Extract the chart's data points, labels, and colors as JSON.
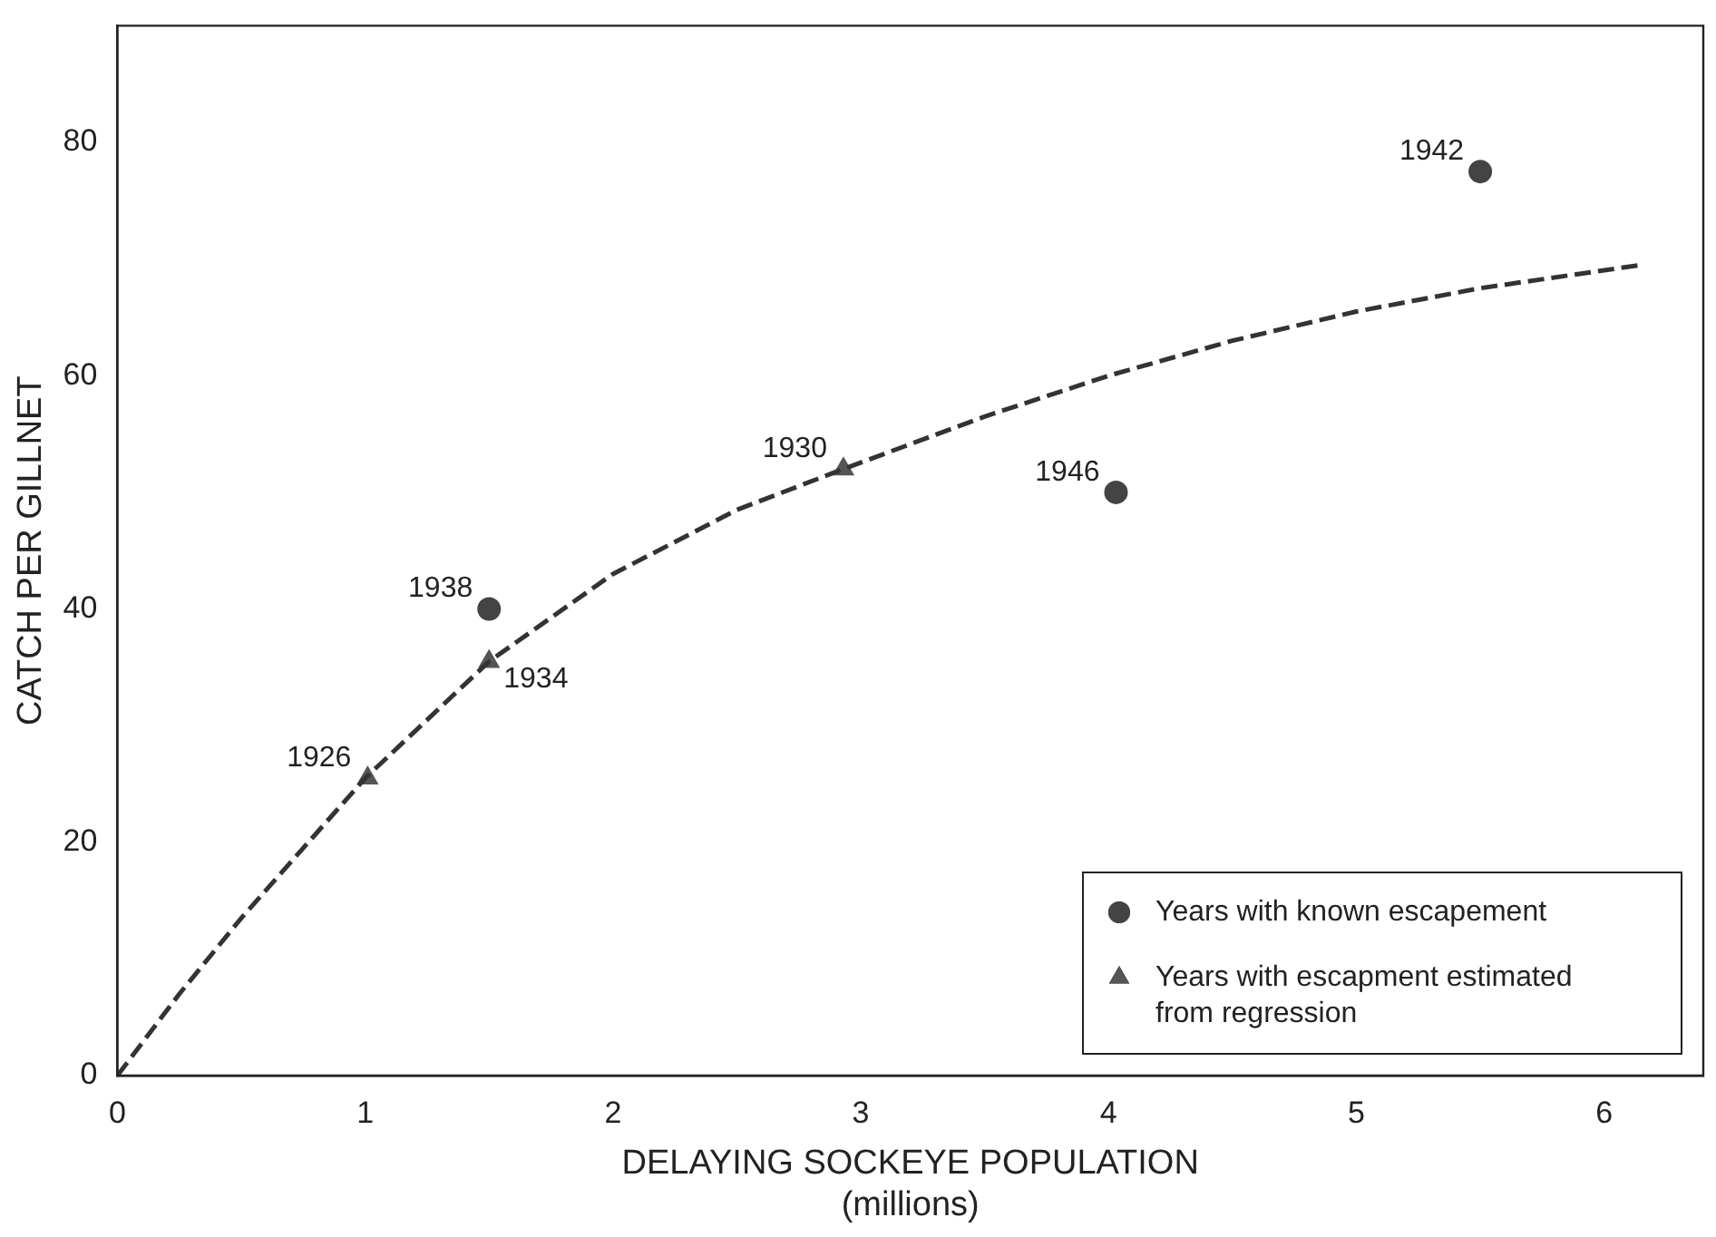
{
  "chart_data": {
    "type": "scatter",
    "xlabel": "DELAYING SOCKEYE POPULATION\n(millions)",
    "ylabel": "CATCH PER GILLNET",
    "xlim": [
      0,
      6.4
    ],
    "xticks": [
      0,
      1,
      2,
      3,
      4,
      5,
      6
    ],
    "ylim": [
      0,
      90
    ],
    "yticks": [
      0,
      20,
      40,
      60,
      80
    ],
    "grid": false,
    "legend": "bottom right",
    "series": [
      {
        "type": "line",
        "color": "#333333",
        "line_style": "dashed",
        "marker": "none",
        "x": [
          0,
          0.25,
          0.5,
          0.75,
          1,
          1.5,
          2,
          2.5,
          2.93,
          3.5,
          4,
          4.5,
          5,
          5.5,
          6.15
        ],
        "values": [
          0,
          7,
          13.5,
          19.5,
          25.5,
          35.5,
          43,
          48.5,
          52,
          56.5,
          60,
          63,
          65.5,
          67.5,
          69.5
        ]
      },
      {
        "name": "Years with known escapement",
        "color": "#444444",
        "marker": "circle",
        "x": [
          1.5,
          4.03,
          5.5
        ],
        "values": [
          40,
          50,
          77.5
        ]
      },
      {
        "name": "Years with escapment estimated from regression",
        "color": "#555555",
        "marker": "triangle",
        "x": [
          1.01,
          1.5,
          2.93
        ],
        "values": [
          25.5,
          35.5,
          52
        ]
      }
    ],
    "annotations": [
      {
        "text": "1938",
        "x": 1.5,
        "y": 40
      },
      {
        "text": "1946",
        "x": 4.03,
        "y": 50
      },
      {
        "text": "1942",
        "x": 5.5,
        "y": 77.5
      },
      {
        "text": "1926",
        "x": 1.01,
        "y": 25.5
      },
      {
        "text": "1934",
        "x": 1.5,
        "y": 35.5
      },
      {
        "text": "1930",
        "x": 2.93,
        "y": 52
      }
    ]
  }
}
